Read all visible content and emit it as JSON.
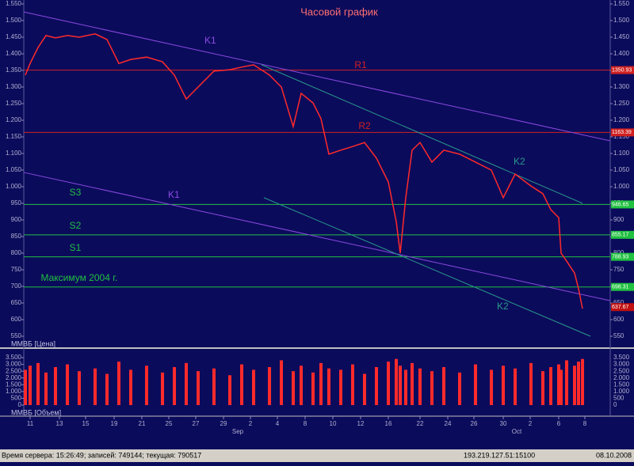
{
  "chart_data": {
    "type": "line",
    "title": "Часовой график",
    "price_legend": "ММВБ [Цена]",
    "volume_legend": "ММВБ [Объем]",
    "ylim": [
      550,
      1550
    ],
    "yticks": [
      {
        "value": 1550,
        "label": "1.550"
      },
      {
        "value": 1500,
        "label": "1.500"
      },
      {
        "value": 1450,
        "label": "1.450"
      },
      {
        "value": 1400,
        "label": "1.400"
      },
      {
        "value": 1350,
        "label": "1.350"
      },
      {
        "value": 1300,
        "label": "1.300"
      },
      {
        "value": 1250,
        "label": "1.250"
      },
      {
        "value": 1200,
        "label": "1.200"
      },
      {
        "value": 1150,
        "label": "1.150"
      },
      {
        "value": 1100,
        "label": "1.100"
      },
      {
        "value": 1050,
        "label": "1.050"
      },
      {
        "value": 1000,
        "label": "1.000"
      },
      950,
      900,
      850,
      800,
      750,
      700,
      650,
      600,
      550
    ],
    "xlim": [
      0,
      740
    ],
    "xticks": [
      {
        "value": 8,
        "label": "11"
      },
      {
        "value": 45,
        "label": "13"
      },
      {
        "value": 78,
        "label": "15"
      },
      {
        "value": 114,
        "label": "19"
      },
      {
        "value": 149,
        "label": "21"
      },
      {
        "value": 183,
        "label": "25"
      },
      {
        "value": 217,
        "label": "27"
      },
      {
        "value": 252,
        "label": "29"
      },
      {
        "value": 286,
        "label": "2"
      },
      {
        "value": 320,
        "label": "4"
      },
      {
        "value": 355,
        "label": "8"
      },
      {
        "value": 390,
        "label": "10"
      },
      {
        "value": 425,
        "label": "12"
      },
      {
        "value": 460,
        "label": "16"
      },
      {
        "value": 500,
        "label": "22"
      },
      {
        "value": 535,
        "label": "24"
      },
      {
        "value": 568,
        "label": "26"
      },
      {
        "value": 605,
        "label": "30"
      },
      {
        "value": 639,
        "label": "2"
      },
      {
        "value": 675,
        "label": "6"
      },
      {
        "value": 708,
        "label": "8"
      }
    ],
    "months": [
      {
        "value": 270,
        "label": "Sep"
      },
      {
        "value": 622,
        "label": "Oct"
      }
    ],
    "series": [
      {
        "name": "ММВБ",
        "color": "#ff2a2a",
        "x": [
          2,
          8,
          18,
          28,
          40,
          55,
          70,
          90,
          105,
          120,
          135,
          155,
          175,
          190,
          205,
          220,
          240,
          260,
          275,
          290,
          310,
          325,
          340,
          350,
          365,
          375,
          385,
          400,
          415,
          430,
          445,
          460,
          470,
          475,
          482,
          490,
          500,
          515,
          530,
          550,
          570,
          590,
          605,
          620,
          640,
          655,
          665,
          675,
          678,
          685,
          695,
          700,
          705
        ],
        "values": [
          1336,
          1371,
          1419,
          1455,
          1448,
          1455,
          1450,
          1460,
          1443,
          1371,
          1383,
          1390,
          1376,
          1336,
          1264,
          1300,
          1348,
          1352,
          1360,
          1367,
          1336,
          1300,
          1181,
          1281,
          1252,
          1205,
          1098,
          1110,
          1121,
          1133,
          1086,
          1014,
          895,
          800,
          967,
          1110,
          1133,
          1074,
          1110,
          1098,
          1074,
          1050,
          967,
          1038,
          1002,
          979,
          931,
          907,
          800,
          776,
          740,
          693,
          633
        ],
        "volumes": [
          2600,
          2900,
          3100,
          2400,
          2800,
          3000,
          2500,
          2700,
          2300,
          3200,
          2600,
          2900,
          2400,
          2800,
          3100,
          2500,
          2700,
          2200,
          3000,
          2600,
          2800,
          3300,
          2500,
          2900,
          2400,
          3100,
          2700,
          2600,
          3000,
          2300,
          2800,
          3200,
          3400,
          2900,
          2600,
          3100,
          2700,
          2500,
          2800,
          2400,
          3000,
          2600,
          2900,
          2700,
          3100,
          2500,
          2800,
          3000,
          2600,
          3300,
          2900,
          3200,
          3400
        ]
      }
    ],
    "volume_ylim": [
      0,
      3500
    ],
    "volume_ticks": [
      {
        "value": 3500,
        "label": "3.500"
      },
      {
        "value": 3000,
        "label": "3.000"
      },
      {
        "value": 2500,
        "label": "2.500"
      },
      {
        "value": 2000,
        "label": "2.000"
      },
      {
        "value": 1500,
        "label": "1.500"
      },
      {
        "value": 1000,
        "label": "1.000"
      },
      500,
      0
    ],
    "levels": [
      {
        "name": "R1",
        "value": 1350.93,
        "color": "#d02020"
      },
      {
        "name": "R2",
        "value": 1163.39,
        "color": "#d02020"
      },
      {
        "name": "S3",
        "value": 946.65,
        "color": "#20c040"
      },
      {
        "name": "S2",
        "value": 855.17,
        "color": "#20c040"
      },
      {
        "name": "S1",
        "value": 788.93,
        "color": "#20c040"
      },
      {
        "name": "Максимум 2004 г.",
        "value": 698.31,
        "color": "#20c040"
      }
    ],
    "last_price": 637.67,
    "trendlines": [
      {
        "name": "K1",
        "color": "#8a4ae0",
        "x": [
          0,
          740
        ],
        "values": [
          1526,
          1138
        ]
      },
      {
        "name": "K1",
        "color": "#8a4ae0",
        "x": [
          0,
          740
        ],
        "values": [
          1043,
          657
        ]
      },
      {
        "name": "K2",
        "color": "#2a9a8a",
        "x": [
          300,
          705
        ],
        "values": [
          1367,
          950
        ]
      },
      {
        "name": "K2",
        "color": "#2a9a8a",
        "x": [
          303,
          715
        ],
        "values": [
          967,
          550
        ]
      }
    ]
  },
  "status_bar": {
    "server": "Время сервера: 15:26:49; записей: 749144; текущая: 790517",
    "address": "193.219.127.51:15100",
    "date": "08.10.2008"
  }
}
